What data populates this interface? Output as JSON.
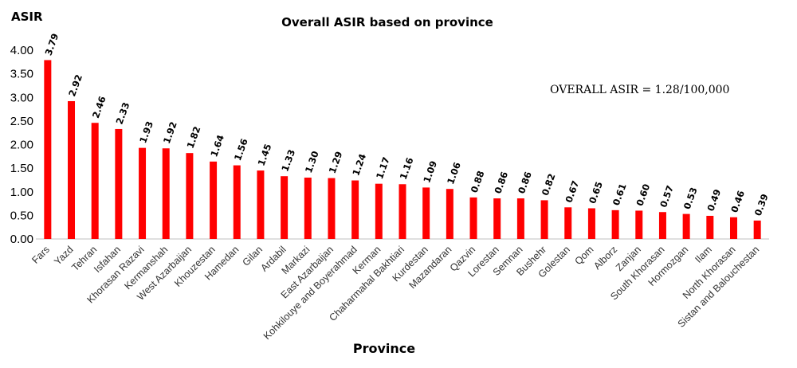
{
  "chart_data": {
    "type": "bar",
    "title": "Overall ASIR based on province",
    "ylabel": "ASIR",
    "xlabel": "Province",
    "annotation": "OVERALL ASIR = 1.28/100,000",
    "ylim": [
      0,
      4
    ],
    "yticks": [
      "0.00",
      "0.50",
      "1.00",
      "1.50",
      "2.00",
      "2.50",
      "3.00",
      "3.50",
      "4.00"
    ],
    "bar_color": "#ff0000",
    "grid": false,
    "legend": "none",
    "categories": [
      "Fars",
      "Yazd",
      "Tehran",
      "Isfahan",
      "Khorasan  Razavi",
      "Kermanshah",
      "West Azarbaijan",
      "Khouzestan",
      "Hamedan",
      "Gilan",
      "Ardabil",
      "Markazi",
      "East Azarbaijan",
      "Kohkilouye and Boyerahmad",
      "Kerman",
      "Chaharmahal Bakhtiari",
      "Kurdestan",
      "Mazandaran",
      "Qazvin",
      "Lorestan",
      "Semnan",
      "Bushehr",
      "Golestan",
      "Qom",
      "Alborz",
      "Zanjan",
      "South Khorasan",
      "Hormozgan",
      "Ilam",
      "North Khorasan",
      "Sistan and Balouchestan"
    ],
    "values": [
      3.79,
      2.92,
      2.46,
      2.33,
      1.93,
      1.92,
      1.82,
      1.64,
      1.56,
      1.45,
      1.33,
      1.3,
      1.29,
      1.24,
      1.17,
      1.16,
      1.09,
      1.06,
      0.88,
      0.86,
      0.86,
      0.82,
      0.67,
      0.65,
      0.61,
      0.6,
      0.57,
      0.53,
      0.49,
      0.46,
      0.39
    ],
    "value_labels": [
      "3.79",
      "2.92",
      "2.46",
      "2.33",
      "1.93",
      "1.92",
      "1.82",
      "1.64",
      "1.56",
      "1.45",
      "1.33",
      "1.30",
      "1.29",
      "1.24",
      "1.17",
      "1.16",
      "1.09",
      "1.06",
      "0.88",
      "0.86",
      "0.86",
      "0.82",
      "0.67",
      "0.65",
      "0.61",
      "0.60",
      "0.57",
      "0.53",
      "0.49",
      "0.46",
      "0.39"
    ]
  }
}
